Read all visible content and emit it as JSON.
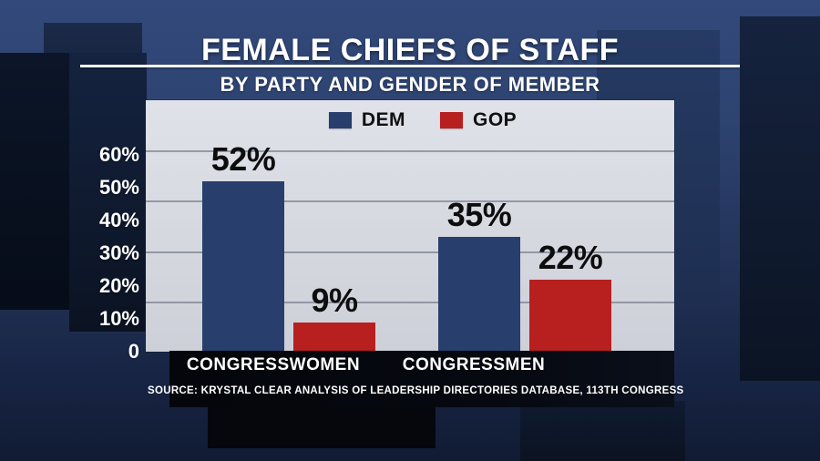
{
  "header": {
    "title": "FEMALE CHIEFS OF STAFF",
    "subtitle": "BY PARTY AND GENDER OF MEMBER"
  },
  "chart_data": {
    "type": "bar",
    "title": "FEMALE CHIEFS OF STAFF",
    "subtitle": "BY PARTY AND GENDER OF MEMBER",
    "categories": [
      "CONGRESSWOMEN",
      "CONGRESSMEN"
    ],
    "series": [
      {
        "name": "DEM",
        "color": "#283e6c",
        "values": [
          52,
          35
        ]
      },
      {
        "name": "GOP",
        "color": "#b81f1f",
        "values": [
          9,
          22
        ]
      }
    ],
    "value_labels": [
      [
        "52%",
        "35%"
      ],
      [
        "9%",
        "22%"
      ]
    ],
    "y_ticks": [
      {
        "value": 60,
        "label": "60%"
      },
      {
        "value": 50,
        "label": "50%"
      },
      {
        "value": 40,
        "label": "40%"
      },
      {
        "value": 30,
        "label": "30%"
      },
      {
        "value": 20,
        "label": "20%"
      },
      {
        "value": 10,
        "label": "10%"
      },
      {
        "value": 0,
        "label": "0"
      }
    ],
    "xlabel": "",
    "ylabel": "",
    "ylim": [
      0,
      76
    ],
    "grid": "horizontal",
    "legend_position": "top-center",
    "source": "SOURCE: KRYSTAL CLEAR ANALYSIS OF LEADERSHIP DIRECTORIES DATABASE, 113TH CONGRESS"
  },
  "footer": {
    "source": "SOURCE: KRYSTAL CLEAR ANALYSIS OF LEADERSHIP DIRECTORIES DATABASE, 113TH CONGRESS"
  },
  "colors": {
    "dem": "#283e6c",
    "gop": "#b81f1f",
    "plot_background": "#d6d8e0",
    "background_navy": "#24375f",
    "strip_black": "#05070c",
    "text_light": "#ffffff",
    "text_dark": "#0d0d0d"
  }
}
